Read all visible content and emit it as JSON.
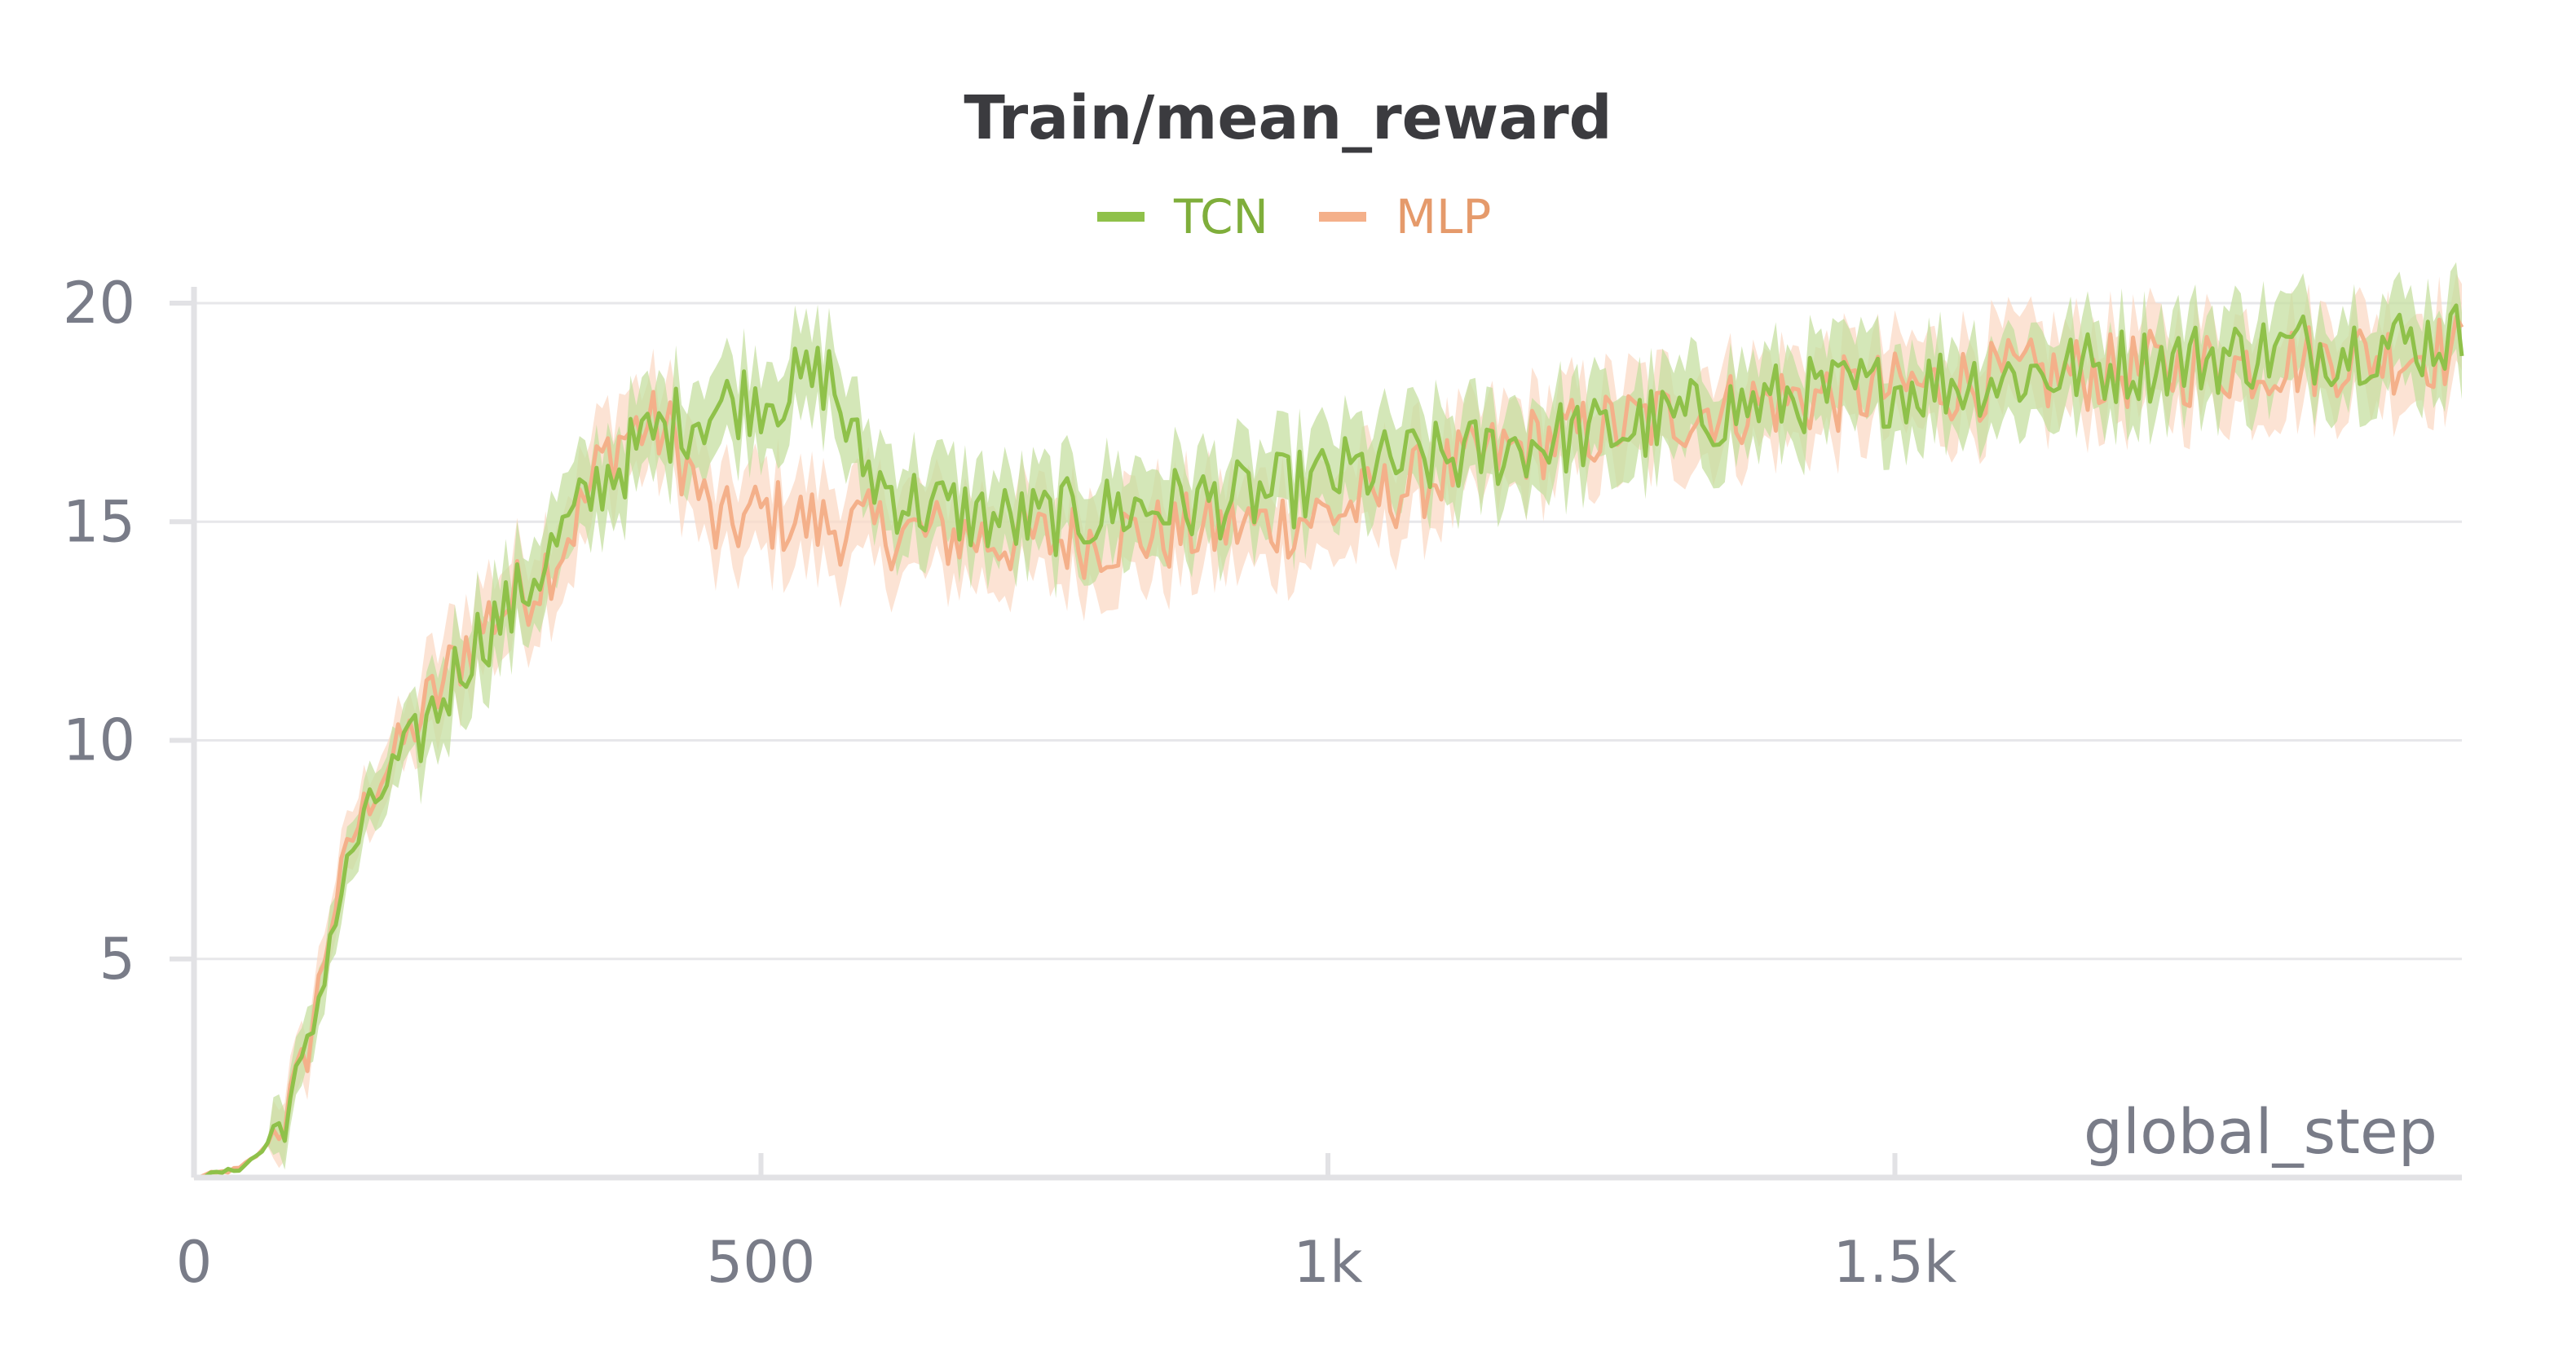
{
  "chart_data": {
    "type": "line",
    "title": "Train/mean_reward",
    "xlabel": "global_step",
    "ylabel": "",
    "xlim": [
      0,
      2000
    ],
    "ylim": [
      0,
      20
    ],
    "grid": true,
    "legend_placement": "top-center",
    "x_ticks": [
      {
        "value": 0,
        "label": "0"
      },
      {
        "value": 500,
        "label": "500"
      },
      {
        "value": 1000,
        "label": "1k"
      },
      {
        "value": 1500,
        "label": "1.5k"
      }
    ],
    "y_ticks": [
      {
        "value": 5,
        "label": "5"
      },
      {
        "value": 10,
        "label": "10"
      },
      {
        "value": 15,
        "label": "15"
      },
      {
        "value": 20,
        "label": "20"
      }
    ],
    "x": [
      0,
      20,
      40,
      60,
      80,
      100,
      120,
      140,
      160,
      180,
      200,
      220,
      240,
      260,
      280,
      300,
      320,
      340,
      360,
      380,
      400,
      420,
      440,
      460,
      480,
      500,
      520,
      540,
      560,
      580,
      600,
      620,
      640,
      660,
      680,
      700,
      720,
      740,
      760,
      780,
      800,
      820,
      840,
      860,
      880,
      900,
      920,
      940,
      960,
      980,
      1000,
      1020,
      1040,
      1060,
      1080,
      1100,
      1120,
      1140,
      1160,
      1180,
      1200,
      1220,
      1240,
      1260,
      1280,
      1300,
      1320,
      1340,
      1360,
      1380,
      1400,
      1420,
      1440,
      1460,
      1480,
      1500,
      1520,
      1540,
      1560,
      1580,
      1600,
      1620,
      1640,
      1660,
      1680,
      1700,
      1720,
      1740,
      1760,
      1780,
      1800,
      1820,
      1840,
      1860,
      1880,
      1900,
      1920,
      1940,
      1960,
      1980,
      2000
    ],
    "series": [
      {
        "name": "TCN",
        "color": "#8fc14a",
        "band_color": "#c5dfa0",
        "values": [
          0,
          0.1,
          0.2,
          0.6,
          1.4,
          2.8,
          5.5,
          7.5,
          8.6,
          9.5,
          10.2,
          11.0,
          12.0,
          12.6,
          13.0,
          13.8,
          14.5,
          15.2,
          16.0,
          16.4,
          16.9,
          17.2,
          17.4,
          17.6,
          17.8,
          17.9,
          18.0,
          18.2,
          18.4,
          16.8,
          16.0,
          15.6,
          15.4,
          15.3,
          15.2,
          15.1,
          15.0,
          15.0,
          15.1,
          15.1,
          15.2,
          15.3,
          15.3,
          15.4,
          15.4,
          15.5,
          15.5,
          15.6,
          15.7,
          15.8,
          16.0,
          16.1,
          16.2,
          16.3,
          16.4,
          16.4,
          16.5,
          16.6,
          16.7,
          16.8,
          16.9,
          17.0,
          17.0,
          17.1,
          17.2,
          17.3,
          17.4,
          17.5,
          17.6,
          17.7,
          17.8,
          17.9,
          17.9,
          18.0,
          18.0,
          18.1,
          18.1,
          18.2,
          18.2,
          18.3,
          18.3,
          18.4,
          18.4,
          18.5,
          18.5,
          18.6,
          18.6,
          18.7,
          18.7,
          18.8,
          18.8,
          18.9,
          18.9,
          19.0,
          19.0,
          19.0,
          19.1,
          19.1,
          19.1,
          19.2,
          19.2
        ]
      },
      {
        "name": "MLP",
        "color": "#f4b08a",
        "band_color": "#fbd9c5",
        "values": [
          0,
          0.1,
          0.2,
          0.6,
          1.4,
          2.9,
          5.8,
          7.8,
          9.0,
          9.8,
          10.5,
          11.3,
          12.2,
          12.8,
          13.2,
          13.6,
          14.3,
          15.2,
          16.4,
          17.0,
          17.2,
          17.0,
          16.0,
          14.8,
          15.0,
          15.2,
          15.1,
          15.0,
          14.9,
          14.9,
          14.8,
          14.8,
          14.7,
          14.7,
          14.7,
          14.6,
          14.6,
          14.6,
          14.6,
          14.6,
          14.6,
          14.7,
          14.7,
          14.7,
          14.8,
          14.8,
          14.9,
          14.9,
          15.0,
          15.1,
          15.2,
          15.3,
          15.5,
          15.7,
          15.9,
          16.1,
          16.3,
          16.5,
          16.6,
          16.8,
          16.9,
          17.0,
          17.1,
          17.2,
          17.3,
          17.4,
          17.5,
          17.6,
          17.6,
          17.7,
          17.8,
          17.8,
          17.9,
          17.9,
          18.0,
          18.0,
          18.1,
          18.1,
          18.2,
          18.2,
          18.3,
          18.3,
          18.3,
          18.4,
          18.4,
          18.4,
          18.5,
          18.5,
          18.5,
          18.6,
          18.6,
          18.6,
          18.7,
          18.7,
          18.7,
          18.8,
          18.8,
          18.8,
          18.9,
          18.9,
          18.9
        ]
      }
    ]
  }
}
